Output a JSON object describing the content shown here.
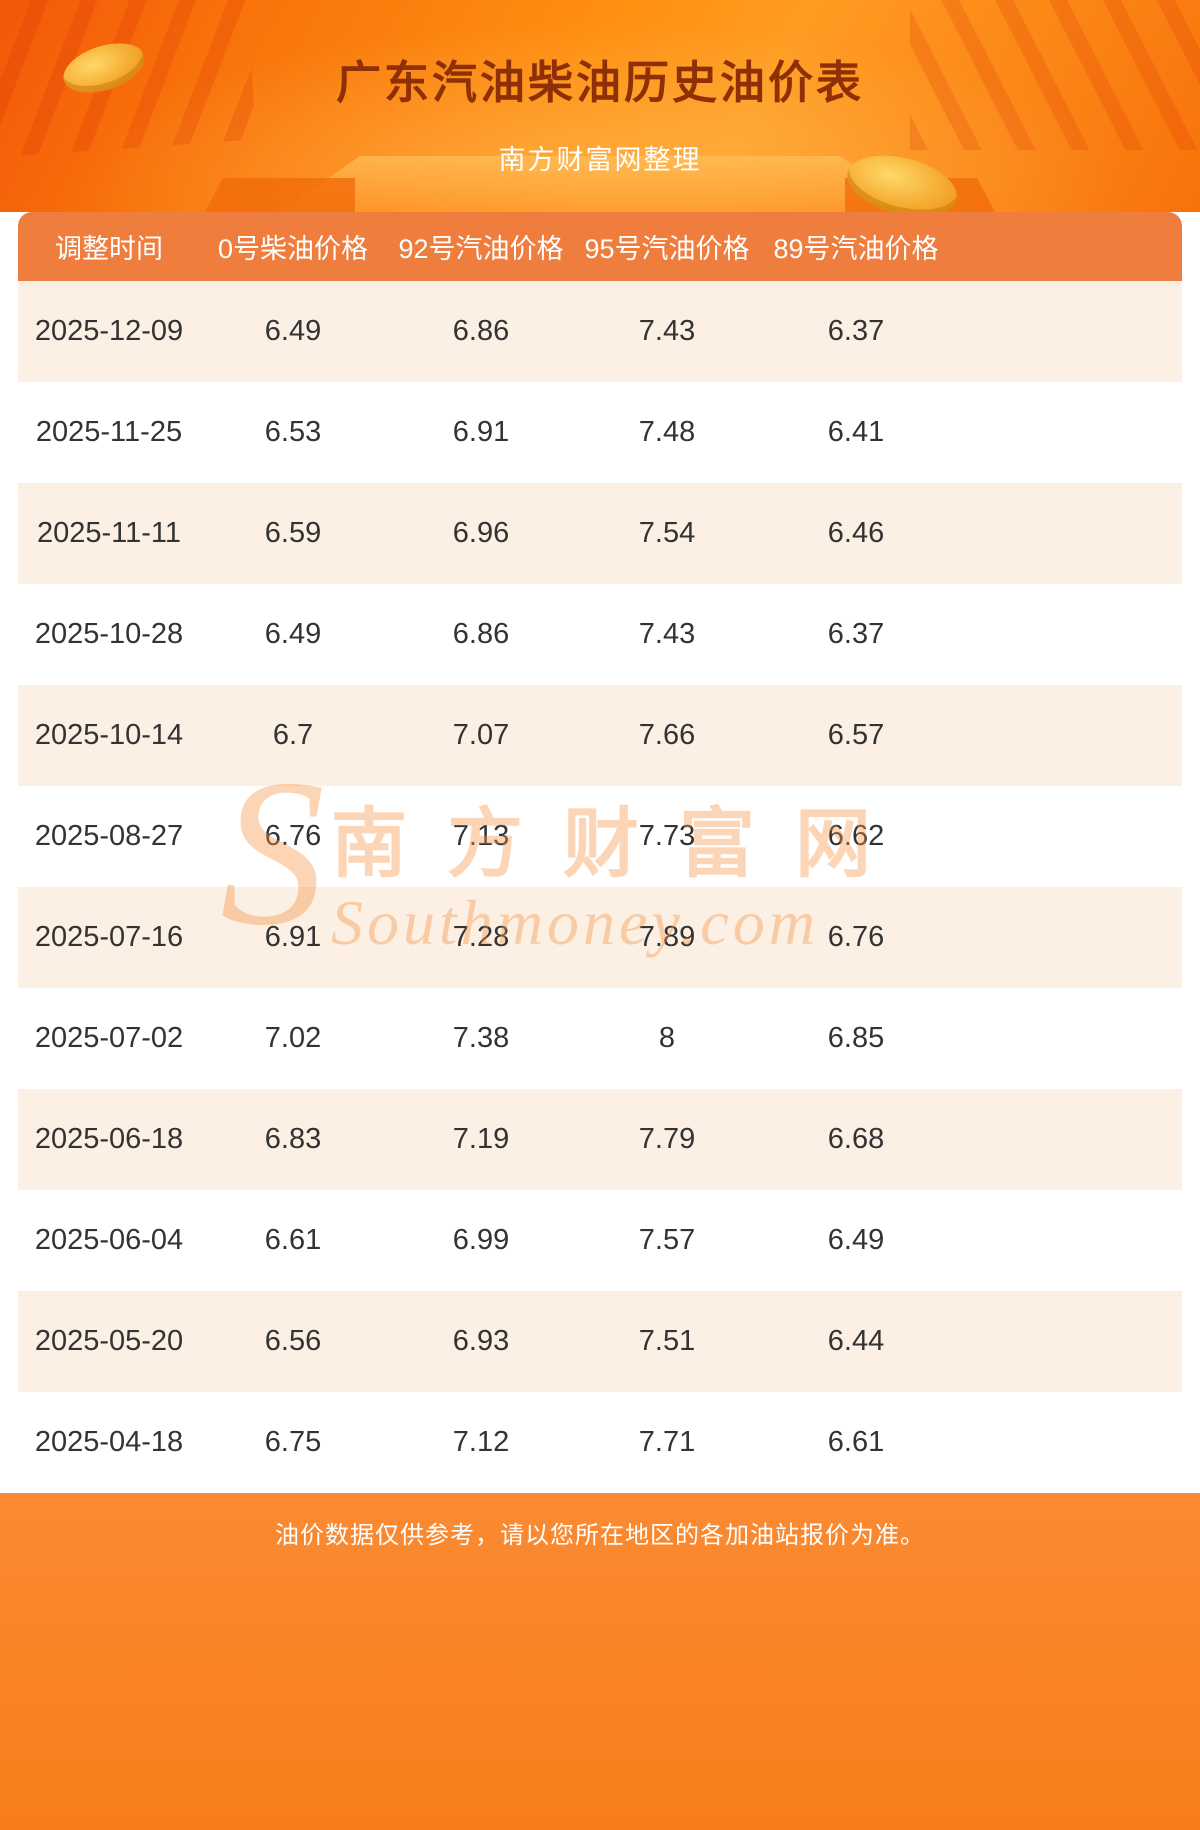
{
  "page": {
    "title": "广东汽油柴油历史油价表",
    "subtitle": "南方财富网整理",
    "footer_note": "油价数据仅供参考，请以您所在地区的各加油站报价为准。",
    "watermark": {
      "cn": "南方财富网",
      "en": "Southmoney.com"
    }
  },
  "colors": {
    "banner_top": "#ff9012",
    "banner_bottom": "#f8720a",
    "title_text": "#8e2f05",
    "subtitle_text": "#ffffff",
    "header_bg": "#ee7d3e",
    "header_text": "#ffffff",
    "row_alt_bg": "#fcefe3",
    "row_bg": "#ffffff",
    "cell_text": "#333333",
    "footer_bg": "#fa8a33",
    "footer_text": "#ffffff"
  },
  "chart_data": {
    "type": "table",
    "title": "广东汽油柴油历史油价表",
    "columns": [
      "调整时间",
      "0号柴油价格",
      "92号汽油价格",
      "95号汽油价格",
      "89号汽油价格"
    ],
    "rows": [
      [
        "2025-12-09",
        "6.49",
        "6.86",
        "7.43",
        "6.37"
      ],
      [
        "2025-11-25",
        "6.53",
        "6.91",
        "7.48",
        "6.41"
      ],
      [
        "2025-11-11",
        "6.59",
        "6.96",
        "7.54",
        "6.46"
      ],
      [
        "2025-10-28",
        "6.49",
        "6.86",
        "7.43",
        "6.37"
      ],
      [
        "2025-10-14",
        "6.7",
        "7.07",
        "7.66",
        "6.57"
      ],
      [
        "2025-08-27",
        "6.76",
        "7.13",
        "7.73",
        "6.62"
      ],
      [
        "2025-07-16",
        "6.91",
        "7.28",
        "7.89",
        "6.76"
      ],
      [
        "2025-07-02",
        "7.02",
        "7.38",
        "8",
        "6.85"
      ],
      [
        "2025-06-18",
        "6.83",
        "7.19",
        "7.79",
        "6.68"
      ],
      [
        "2025-06-04",
        "6.61",
        "6.99",
        "7.57",
        "6.49"
      ],
      [
        "2025-05-20",
        "6.56",
        "6.93",
        "7.51",
        "6.44"
      ],
      [
        "2025-04-18",
        "6.75",
        "7.12",
        "7.71",
        "6.61"
      ]
    ],
    "layout": {
      "striped_rows": true,
      "first_stripe": "alt",
      "header_position": "top"
    }
  }
}
